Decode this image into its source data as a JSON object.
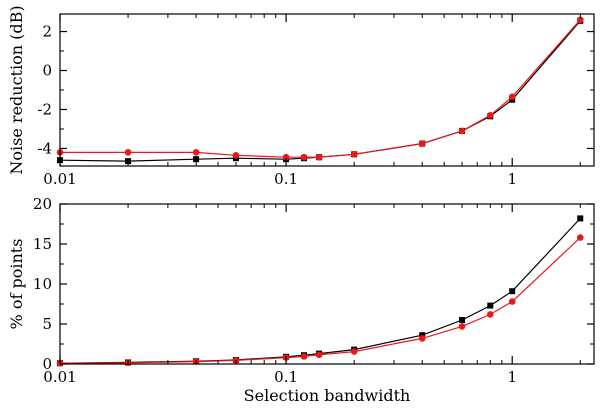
{
  "chart_data": [
    {
      "type": "line",
      "xscale": "log",
      "xlim": [
        0.01,
        2.3
      ],
      "ylim": [
        -4.9,
        2.9
      ],
      "yticks": [
        2,
        0,
        -2,
        -4
      ],
      "ytick_labels": [
        "2",
        "0",
        "-2",
        "-4"
      ],
      "xticks": [
        0.01,
        0.1,
        1
      ],
      "xtick_labels": [
        "0.01",
        "0.1",
        "1"
      ],
      "ylabel": "Noise reduction (dB)",
      "xlabel": "",
      "series": [
        {
          "marker": "square",
          "color": "#000000",
          "x": [
            0.01,
            0.02,
            0.04,
            0.06,
            0.1,
            0.12,
            0.14,
            0.2,
            0.4,
            0.6,
            0.8,
            1.0,
            2.0
          ],
          "y": [
            -4.6,
            -4.65,
            -4.55,
            -4.5,
            -4.55,
            -4.5,
            -4.45,
            -4.3,
            -3.75,
            -3.1,
            -2.35,
            -1.5,
            2.55
          ]
        },
        {
          "marker": "circle",
          "color": "#e8191b",
          "x": [
            0.01,
            0.02,
            0.04,
            0.06,
            0.1,
            0.12,
            0.14,
            0.2,
            0.4,
            0.6,
            0.8,
            1.0,
            2.0
          ],
          "y": [
            -4.2,
            -4.2,
            -4.2,
            -4.35,
            -4.45,
            -4.45,
            -4.45,
            -4.3,
            -3.75,
            -3.1,
            -2.3,
            -1.35,
            2.6
          ]
        }
      ]
    },
    {
      "type": "line",
      "xscale": "log",
      "xlim": [
        0.01,
        2.3
      ],
      "ylim": [
        0,
        20
      ],
      "yticks": [
        0,
        5,
        10,
        15,
        20
      ],
      "ytick_labels": [
        "0",
        "5",
        "10",
        "15",
        "20"
      ],
      "xticks": [
        0.01,
        0.1,
        1
      ],
      "xtick_labels": [
        "0.01",
        "0.1",
        "1"
      ],
      "ylabel": "% of points",
      "xlabel": "Selection bandwidth",
      "series": [
        {
          "marker": "square",
          "color": "#000000",
          "x": [
            0.01,
            0.02,
            0.04,
            0.06,
            0.1,
            0.12,
            0.14,
            0.2,
            0.4,
            0.6,
            0.8,
            1.0,
            2.0
          ],
          "y": [
            0.1,
            0.2,
            0.35,
            0.5,
            0.9,
            1.1,
            1.3,
            1.8,
            3.6,
            5.5,
            7.3,
            9.1,
            18.2
          ]
        },
        {
          "marker": "circle",
          "color": "#e8191b",
          "x": [
            0.01,
            0.02,
            0.04,
            0.06,
            0.1,
            0.12,
            0.14,
            0.2,
            0.4,
            0.6,
            0.8,
            1.0,
            2.0
          ],
          "y": [
            0.1,
            0.15,
            0.3,
            0.45,
            0.8,
            0.95,
            1.15,
            1.55,
            3.2,
            4.7,
            6.2,
            7.8,
            15.8
          ]
        }
      ]
    }
  ]
}
